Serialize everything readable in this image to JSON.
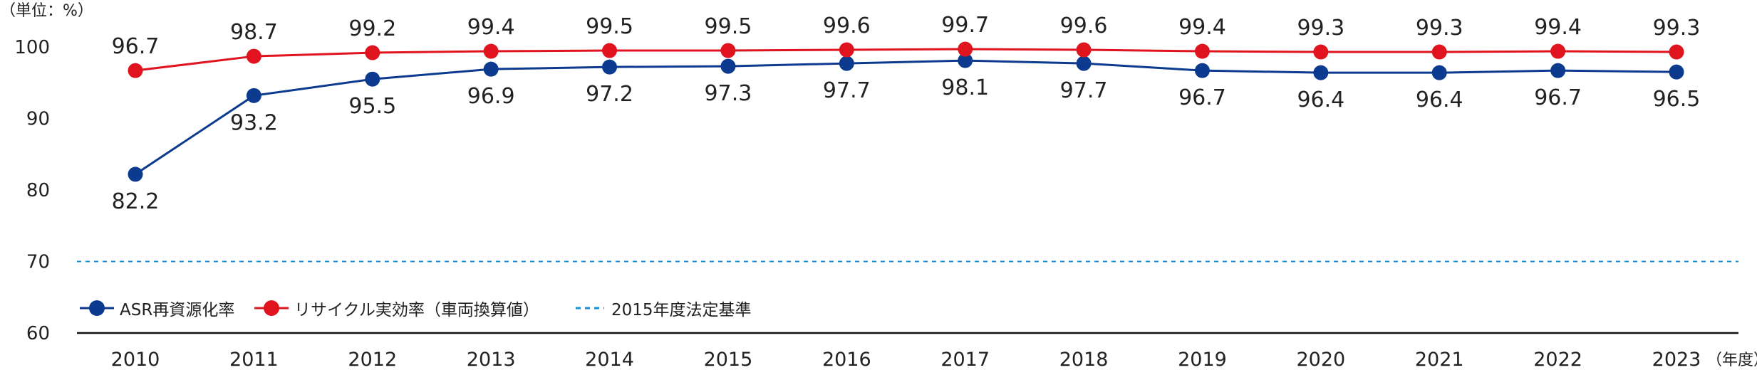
{
  "chart_data": {
    "type": "line",
    "unit_label": "（単位：%）",
    "x": [
      "2010",
      "2011",
      "2012",
      "2013",
      "2014",
      "2015",
      "2016",
      "2017",
      "2018",
      "2019",
      "2020",
      "2021",
      "2022",
      "2023"
    ],
    "x_suffix": "（年度）",
    "yticks": [
      "60",
      "70",
      "80",
      "90",
      "100"
    ],
    "ylim": [
      60,
      102
    ],
    "series": [
      {
        "name": "ASR再資源化率",
        "color": "#0c3a8f",
        "values": [
          82.2,
          93.2,
          95.5,
          96.9,
          97.2,
          97.3,
          97.7,
          98.1,
          97.7,
          96.7,
          96.4,
          96.4,
          96.7,
          96.5
        ],
        "labels": [
          "82.2",
          "93.2",
          "95.5",
          "96.9",
          "97.2",
          "97.3",
          "97.7",
          "98.1",
          "97.7",
          "96.7",
          "96.4",
          "96.4",
          "96.7",
          "96.5"
        ]
      },
      {
        "name": "リサイクル実効率（車両換算値）",
        "color": "#e0141e",
        "values": [
          96.7,
          98.7,
          99.2,
          99.4,
          99.5,
          99.5,
          99.6,
          99.7,
          99.6,
          99.4,
          99.3,
          99.3,
          99.4,
          99.3
        ],
        "labels": [
          "96.7",
          "98.7",
          "99.2",
          "99.4",
          "99.5",
          "99.5",
          "99.6",
          "99.7",
          "99.6",
          "99.4",
          "99.3",
          "99.3",
          "99.4",
          "99.3"
        ]
      }
    ],
    "reference_line": {
      "name": "2015年度法定基準",
      "value": 70,
      "color": "#1a8fd6",
      "style": "dashed"
    },
    "legend_position": "bottom-left",
    "grid": false
  }
}
